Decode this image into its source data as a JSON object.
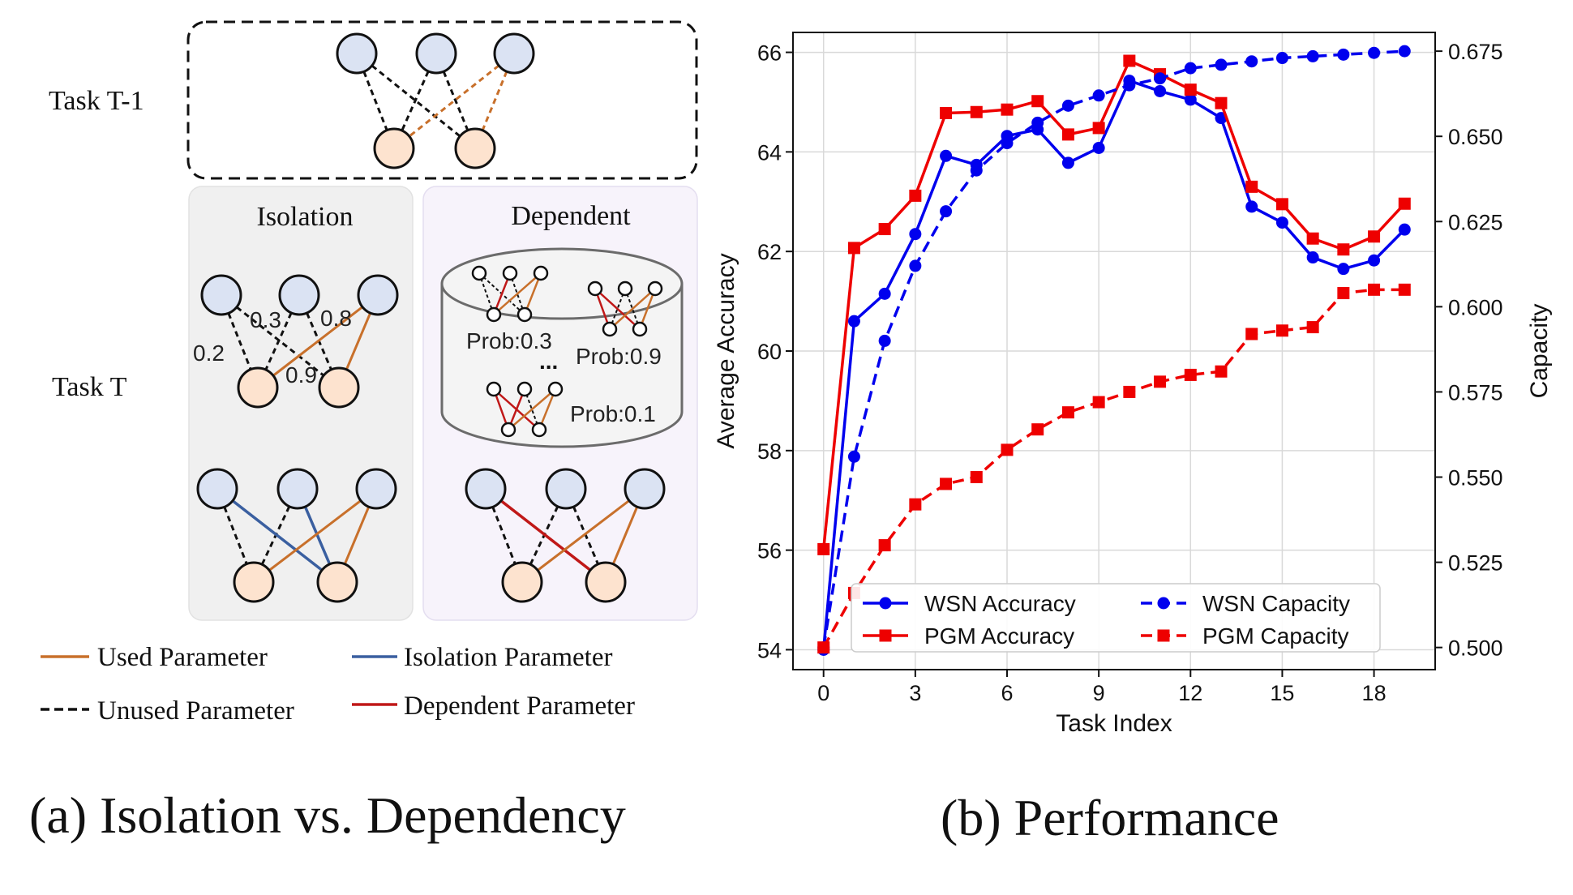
{
  "diagram": {
    "task_prev_label": "Task T-1",
    "task_curr_label": "Task T",
    "isolation_title": "Isolation",
    "dependent_title": "Dependent",
    "weights": [
      "0.2",
      "0.3",
      "0.8",
      "0.9"
    ],
    "probs": [
      "Prob:0.3",
      "Prob:0.9",
      "Prob:0.1"
    ],
    "ellipsis": "...",
    "legend": {
      "used": "Used Parameter",
      "isolation": "Isolation Parameter",
      "unused": "Unused Parameter",
      "dependent": "Dependent Parameter"
    },
    "colors": {
      "node_top": "#dbe3f3",
      "node_bottom": "#fde3cf",
      "used": "#c8702b",
      "isolation": "#3a5fa0",
      "dependent": "#c01818",
      "isolation_panel": "#f0f0f0",
      "dependent_panel": "#f7f3fb"
    }
  },
  "captions": {
    "a": "(a) Isolation vs. Dependency",
    "b": "(b) Performance"
  },
  "chart_data": {
    "type": "line",
    "xlabel": "Task Index",
    "ylabel_left": "Average Accuracy",
    "ylabel_right": "Capacity",
    "xlim": [
      -1,
      20
    ],
    "ylim_left": [
      53.6,
      66.4
    ],
    "ylim_right": [
      0.4935,
      0.6805
    ],
    "xticks": [
      0,
      3,
      6,
      9,
      12,
      15,
      18
    ],
    "yticks_left": [
      54,
      56,
      58,
      60,
      62,
      64,
      66
    ],
    "yticks_right": [
      0.5,
      0.525,
      0.55,
      0.575,
      0.6,
      0.625,
      0.65,
      0.675
    ],
    "yticks_right_labels": [
      "0.500",
      "0.525",
      "0.550",
      "0.575",
      "0.600",
      "0.625",
      "0.650",
      "0.675"
    ],
    "grid": true,
    "legend_position": "lower-center",
    "x": [
      0,
      1,
      2,
      3,
      4,
      5,
      6,
      7,
      8,
      9,
      10,
      11,
      12,
      13,
      14,
      15,
      16,
      17,
      18,
      19
    ],
    "series": [
      {
        "name": "WSN Accuracy",
        "axis": "left",
        "color": "#0000ee",
        "dash": "solid",
        "marker": "circle",
        "values": [
          54.0,
          60.6,
          61.15,
          62.35,
          63.92,
          63.74,
          64.32,
          64.45,
          63.78,
          64.08,
          65.43,
          65.22,
          65.05,
          64.68,
          62.9,
          62.58,
          61.88,
          61.65,
          61.82,
          62.44
        ]
      },
      {
        "name": "PGM Accuracy",
        "axis": "left",
        "color": "#ee0000",
        "dash": "solid",
        "marker": "square",
        "values": [
          56.02,
          62.07,
          62.45,
          63.12,
          64.78,
          64.8,
          64.85,
          65.02,
          64.35,
          64.48,
          65.83,
          65.56,
          65.25,
          64.98,
          63.3,
          62.95,
          62.26,
          62.04,
          62.3,
          62.96
        ]
      },
      {
        "name": "WSN Capacity",
        "axis": "right",
        "color": "#0000ee",
        "dash": "dashed",
        "marker": "circle",
        "values": [
          0.5,
          0.556,
          0.59,
          0.612,
          0.628,
          0.64,
          0.648,
          0.654,
          0.659,
          0.662,
          0.665,
          0.667,
          0.67,
          0.671,
          0.672,
          0.673,
          0.6735,
          0.674,
          0.6745,
          0.675
        ]
      },
      {
        "name": "PGM Capacity",
        "axis": "right",
        "color": "#ee0000",
        "dash": "dashed",
        "marker": "square",
        "values": [
          0.5,
          0.516,
          0.53,
          0.542,
          0.548,
          0.55,
          0.558,
          0.564,
          0.569,
          0.572,
          0.575,
          0.578,
          0.58,
          0.581,
          0.592,
          0.593,
          0.594,
          0.604,
          0.605,
          0.605
        ]
      }
    ]
  }
}
